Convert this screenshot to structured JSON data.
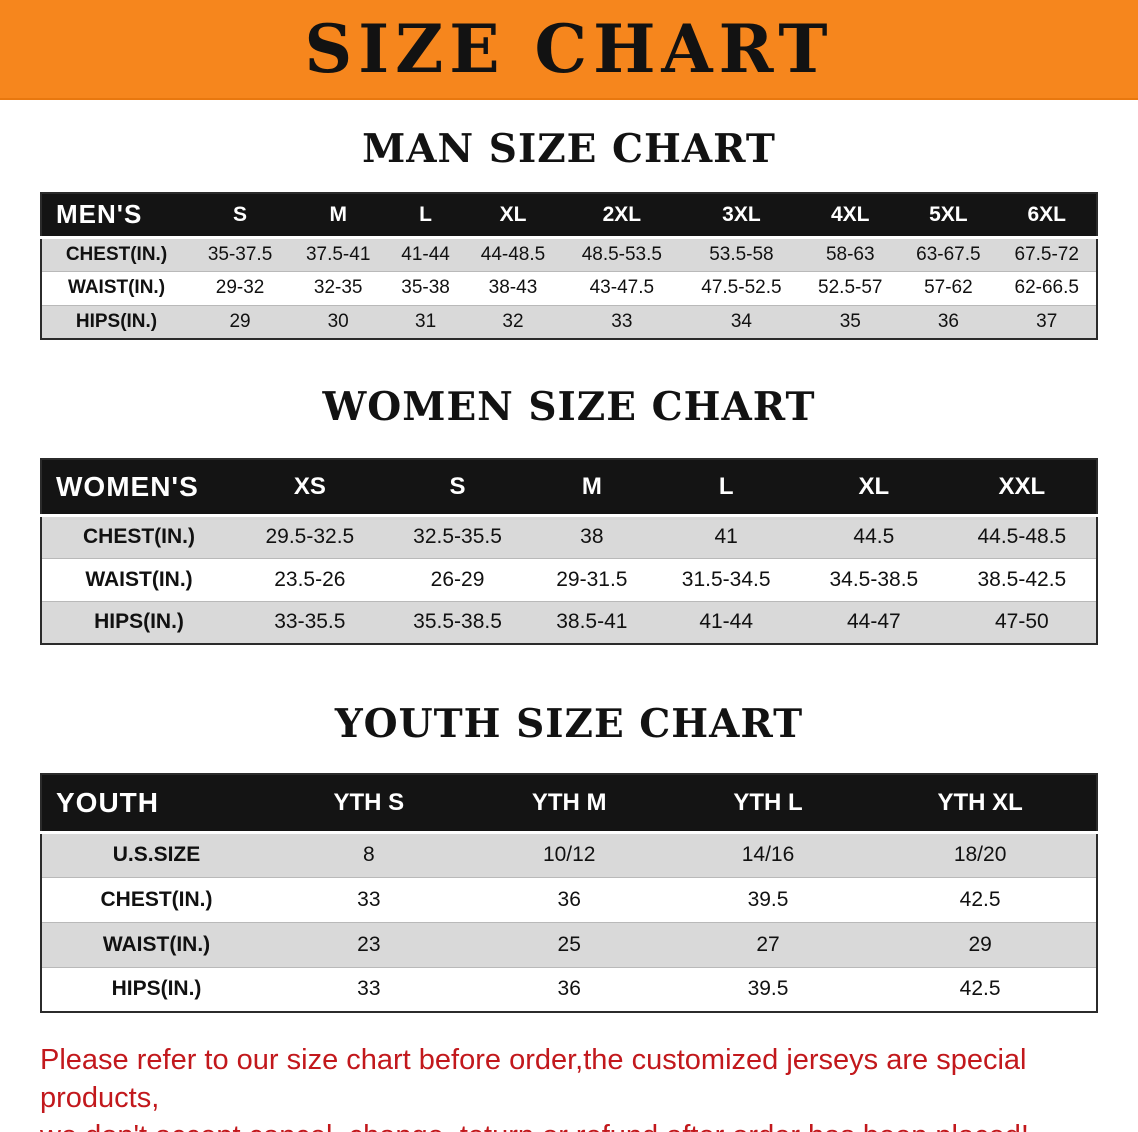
{
  "banner": {
    "title": "SIZE CHART",
    "bg_color": "#F6861D",
    "text_color": "#121212"
  },
  "footer_note": {
    "line1": "Please refer to our size chart before order,the customized jerseys are special products,",
    "line2": "we don't accept cancel, change, teturn or refund after order has been placed!",
    "color": "#C2181C"
  },
  "chart_data": [
    {
      "type": "table",
      "title": "MAN SIZE CHART",
      "corner_label": "MEN'S",
      "columns": [
        "S",
        "M",
        "L",
        "XL",
        "2XL",
        "3XL",
        "4XL",
        "5XL",
        "6XL"
      ],
      "rows": [
        {
          "label": "CHEST(IN.)",
          "values": [
            "35-37.5",
            "37.5-41",
            "41-44",
            "44-48.5",
            "48.5-53.5",
            "53.5-58",
            "58-63",
            "63-67.5",
            "67.5-72"
          ]
        },
        {
          "label": "WAIST(IN.)",
          "values": [
            "29-32",
            "32-35",
            "35-38",
            "38-43",
            "43-47.5",
            "47.5-52.5",
            "52.5-57",
            "57-62",
            "62-66.5"
          ]
        },
        {
          "label": "HIPS(IN.)",
          "values": [
            "29",
            "30",
            "31",
            "32",
            "33",
            "34",
            "35",
            "36",
            "37"
          ]
        }
      ]
    },
    {
      "type": "table",
      "title": "WOMEN SIZE CHART",
      "corner_label": "WOMEN'S",
      "columns": [
        "XS",
        "S",
        "M",
        "L",
        "XL",
        "XXL"
      ],
      "rows": [
        {
          "label": "CHEST(IN.)",
          "values": [
            "29.5-32.5",
            "32.5-35.5",
            "38",
            "41",
            "44.5",
            "44.5-48.5"
          ]
        },
        {
          "label": "WAIST(IN.)",
          "values": [
            "23.5-26",
            "26-29",
            "29-31.5",
            "31.5-34.5",
            "34.5-38.5",
            "38.5-42.5"
          ]
        },
        {
          "label": "HIPS(IN.)",
          "values": [
            "33-35.5",
            "35.5-38.5",
            "38.5-41",
            "41-44",
            "44-47",
            "47-50"
          ]
        }
      ]
    },
    {
      "type": "table",
      "title": "YOUTH SIZE CHART",
      "corner_label": "YOUTH",
      "columns": [
        "YTH S",
        "YTH M",
        "YTH L",
        "YTH XL"
      ],
      "rows": [
        {
          "label": "U.S.SIZE",
          "values": [
            "8",
            "10/12",
            "14/16",
            "18/20"
          ]
        },
        {
          "label": "CHEST(IN.)",
          "values": [
            "33",
            "36",
            "39.5",
            "42.5"
          ]
        },
        {
          "label": "WAIST(IN.)",
          "values": [
            "23",
            "25",
            "27",
            "29"
          ]
        },
        {
          "label": "HIPS(IN.)",
          "values": [
            "33",
            "36",
            "39.5",
            "42.5"
          ]
        }
      ]
    }
  ]
}
